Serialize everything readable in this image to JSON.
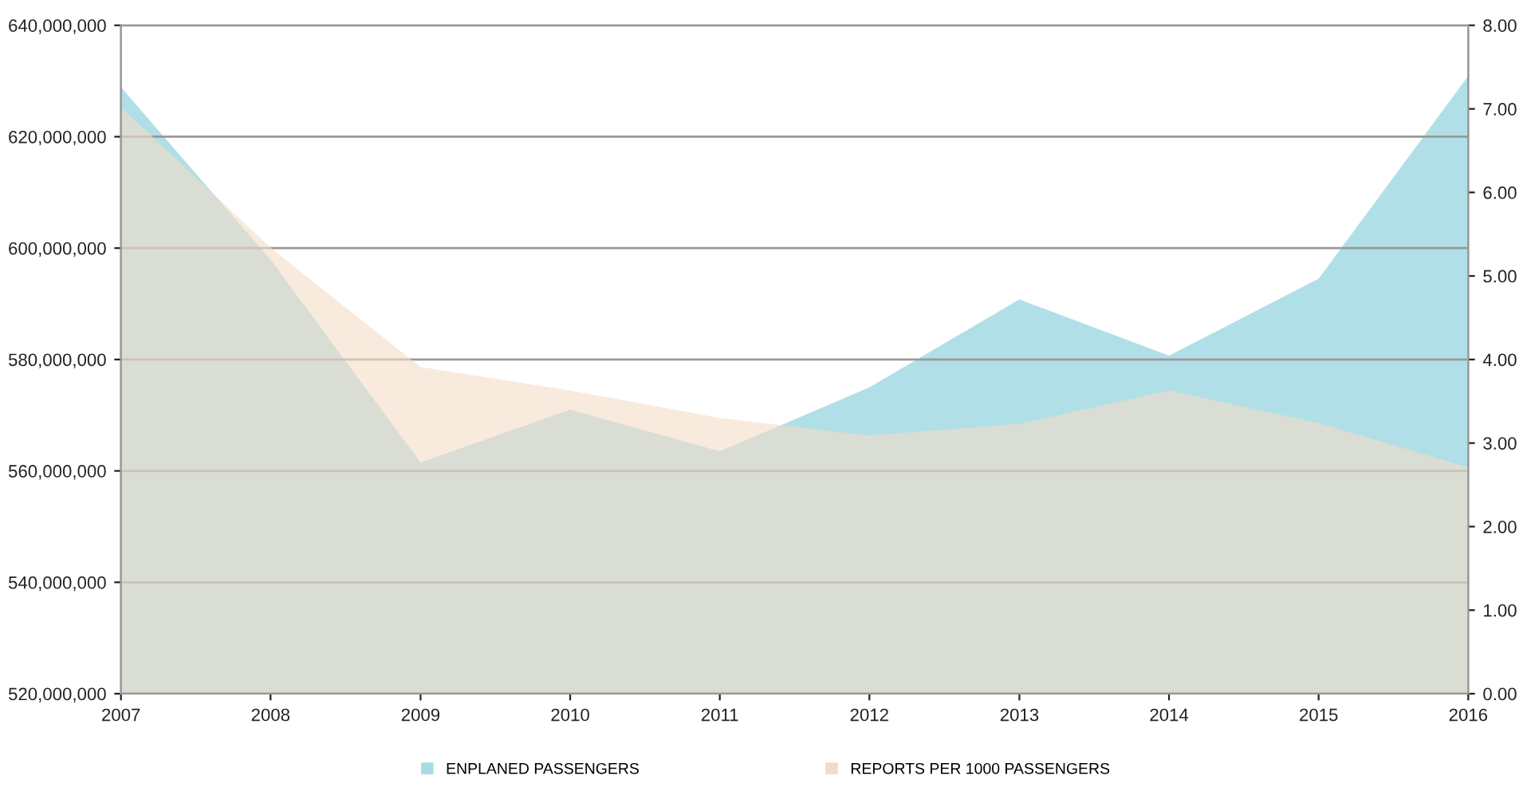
{
  "chart_data": {
    "type": "area",
    "x": [
      "2007",
      "2008",
      "2009",
      "2010",
      "2011",
      "2012",
      "2013",
      "2014",
      "2015",
      "2016"
    ],
    "xlim": [
      "2007",
      "2016"
    ],
    "xticks": [
      {
        "value": "2007",
        "label": "2007"
      },
      {
        "value": "2008",
        "label": "2008"
      },
      {
        "value": "2009",
        "label": "2009"
      },
      {
        "value": "2010",
        "label": "2010"
      },
      {
        "value": "2011",
        "label": "2011"
      },
      {
        "value": "2012",
        "label": "2012"
      },
      {
        "value": "2013",
        "label": "2013"
      },
      {
        "value": "2014",
        "label": "2014"
      },
      {
        "value": "2015",
        "label": "2015"
      },
      {
        "value": "2016",
        "label": "2016"
      }
    ],
    "series": [
      {
        "name": "ENPLANED PASSENGERS",
        "color": "#a9dbe4",
        "values": [
          628900000,
          597900000,
          561500000,
          571000000,
          563500000,
          575000000,
          590800000,
          580700000,
          594500000,
          630900000
        ]
      },
      {
        "name": "REPORTS PER 1000 PASSENGERS",
        "color": "#f3dcc6",
        "axis": "y2",
        "values": [
          7.02,
          5.34,
          3.91,
          3.63,
          3.3,
          3.09,
          3.23,
          3.63,
          3.24,
          2.71
        ]
      }
    ],
    "ylim": [
      520000000,
      640000000
    ],
    "yticks": [
      {
        "value": 520000000,
        "label": "520,000,000"
      },
      {
        "value": 540000000,
        "label": "540,000,000"
      },
      {
        "value": 560000000,
        "label": "560,000,000"
      },
      {
        "value": 580000000,
        "label": "580,000,000"
      },
      {
        "value": 600000000,
        "label": "600,000,000"
      },
      {
        "value": 620000000,
        "label": "620,000,000"
      },
      {
        "value": 640000000,
        "label": "640,000,000"
      }
    ],
    "y2lim": [
      0,
      8
    ],
    "y2ticks": [
      {
        "value": 0,
        "label": "0.00"
      },
      {
        "value": 1,
        "label": "1.00"
      },
      {
        "value": 2,
        "label": "2.00"
      },
      {
        "value": 3,
        "label": "3.00"
      },
      {
        "value": 4,
        "label": "4.00"
      },
      {
        "value": 5,
        "label": "5.00"
      },
      {
        "value": 6,
        "label": "6.00"
      },
      {
        "value": 7,
        "label": "7.00"
      },
      {
        "value": 8,
        "label": "8.00"
      }
    ],
    "grid": "y",
    "legend": "bottom"
  }
}
